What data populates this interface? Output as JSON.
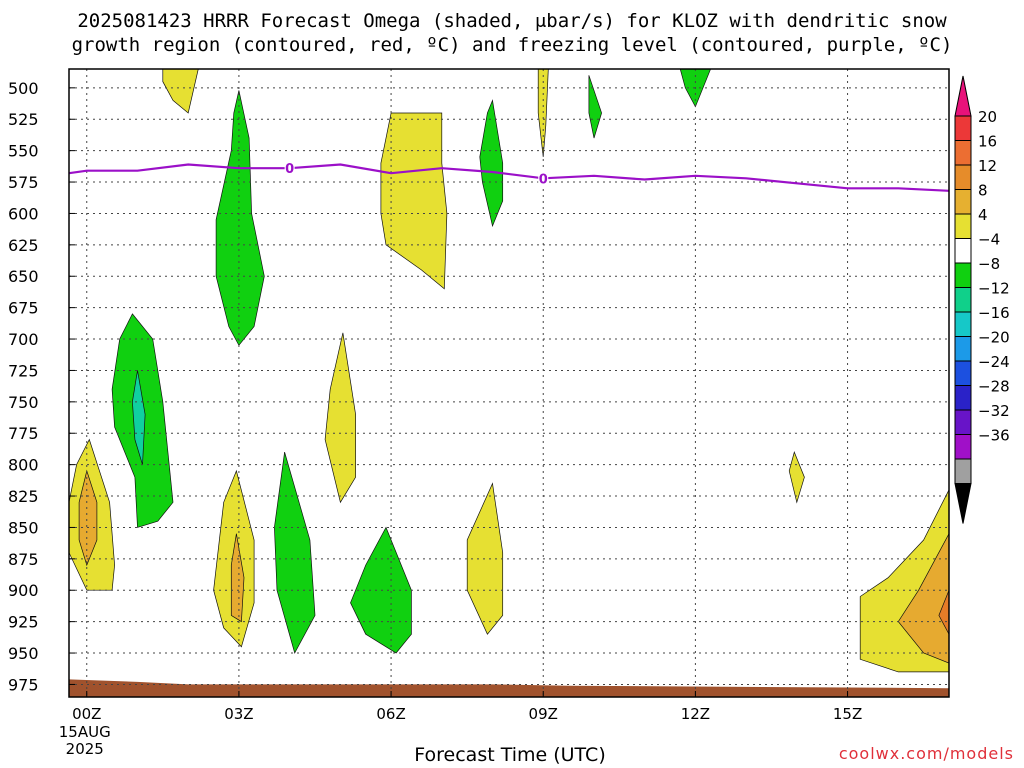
{
  "title_line1": "2025081423 HRRR Forecast Omega (shaded, μbar/s) for KLOZ with dendritic snow",
  "title_line2": "growth region (contoured, red, ºC) and freezing level (contoured, purple, ºC)",
  "xlabel": "Forecast Time (UTC)",
  "credit": "coolwx.com/models",
  "colors": {
    "freezing_level": "#9b10c8",
    "terrain": "#a0522d",
    "omega_pos_4_8": "#e6e032",
    "omega_pos_8_12": "#e6aa30",
    "omega_pos_12_16": "#e67c28",
    "omega_neg_4_8": "#10d010",
    "omega_neg_8_12": "#10d0a0",
    "credit": "#e0303a"
  },
  "chart_data": {
    "type": "time-height contour",
    "x": {
      "unit": "forecast hour (UTC)",
      "range": [
        -0.35,
        17
      ],
      "ticks": [
        {
          "hour": 0,
          "label": "00Z",
          "sub": [
            "15AUG",
            "2025"
          ]
        },
        {
          "hour": 3,
          "label": "03Z"
        },
        {
          "hour": 6,
          "label": "06Z"
        },
        {
          "hour": 9,
          "label": "09Z"
        },
        {
          "hour": 12,
          "label": "12Z"
        },
        {
          "hour": 15,
          "label": "15Z"
        }
      ]
    },
    "y": {
      "unit": "mb",
      "range": [
        485,
        985
      ],
      "ticks": [
        500,
        525,
        550,
        575,
        600,
        625,
        650,
        675,
        700,
        725,
        750,
        775,
        800,
        825,
        850,
        875,
        900,
        925,
        950,
        975
      ]
    },
    "grid": true,
    "colorbar": {
      "unit": "μbar/s",
      "levels": [
        "20",
        "16",
        "12",
        "8",
        "4",
        "−4",
        "−8",
        "−12",
        "−16",
        "−20",
        "−24",
        "−28",
        "−32",
        "−36"
      ],
      "colors": [
        "#e8127a",
        "#ec3838",
        "#ec6e32",
        "#e68c2a",
        "#e6b030",
        "#e6e032",
        "#ffffff",
        "#10d010",
        "#10d08a",
        "#16c8c8",
        "#1c9ae8",
        "#1c50e0",
        "#2a22c8",
        "#6814c8",
        "#a010c8",
        "#a0a0a0",
        "#000000"
      ]
    },
    "freezing_level": {
      "label": "0",
      "label_hours": [
        4,
        9
      ],
      "points": [
        [
          -0.35,
          568
        ],
        [
          0,
          566
        ],
        [
          1,
          566
        ],
        [
          2,
          561
        ],
        [
          3,
          564
        ],
        [
          4,
          564
        ],
        [
          5,
          561
        ],
        [
          6,
          568
        ],
        [
          7,
          564
        ],
        [
          8,
          567
        ],
        [
          9,
          572
        ],
        [
          10,
          570
        ],
        [
          11,
          573
        ],
        [
          12,
          570
        ],
        [
          13,
          572
        ],
        [
          14,
          576
        ],
        [
          15,
          580
        ],
        [
          16,
          580
        ],
        [
          17,
          582
        ]
      ]
    },
    "omega_regions": [
      {
        "sign": "+",
        "class": "4-8",
        "points": [
          [
            1.5,
            485
          ],
          [
            2.2,
            485
          ],
          [
            2.0,
            520
          ],
          [
            1.7,
            510
          ],
          [
            1.5,
            495
          ]
        ]
      },
      {
        "sign": "-",
        "class": "4-8",
        "points": [
          [
            3.0,
            502
          ],
          [
            3.2,
            540
          ],
          [
            3.25,
            600
          ],
          [
            3.5,
            650
          ],
          [
            3.3,
            690
          ],
          [
            3.0,
            705
          ],
          [
            2.8,
            690
          ],
          [
            2.55,
            650
          ],
          [
            2.55,
            605
          ],
          [
            2.85,
            550
          ],
          [
            2.9,
            520
          ]
        ]
      },
      {
        "sign": "-",
        "class": "4-8",
        "points": [
          [
            0.9,
            680
          ],
          [
            1.3,
            700
          ],
          [
            1.5,
            750
          ],
          [
            1.6,
            790
          ],
          [
            1.7,
            830
          ],
          [
            1.4,
            845
          ],
          [
            1.0,
            850
          ],
          [
            0.95,
            810
          ],
          [
            0.55,
            770
          ],
          [
            0.5,
            740
          ],
          [
            0.65,
            700
          ]
        ]
      },
      {
        "sign": "-",
        "class": "8-12",
        "points": [
          [
            1.0,
            725
          ],
          [
            1.15,
            760
          ],
          [
            1.1,
            800
          ],
          [
            0.95,
            780
          ],
          [
            0.9,
            750
          ]
        ]
      },
      {
        "sign": "+",
        "class": "4-8",
        "points": [
          [
            0.05,
            780
          ],
          [
            0.45,
            830
          ],
          [
            0.55,
            880
          ],
          [
            0.5,
            900
          ],
          [
            0.0,
            900
          ],
          [
            -0.35,
            870
          ],
          [
            -0.35,
            830
          ],
          [
            -0.2,
            800
          ]
        ]
      },
      {
        "sign": "+",
        "class": "8-12",
        "points": [
          [
            0.0,
            805
          ],
          [
            0.2,
            830
          ],
          [
            0.2,
            860
          ],
          [
            0.0,
            880
          ],
          [
            -0.15,
            860
          ],
          [
            -0.15,
            830
          ]
        ]
      },
      {
        "sign": "+",
        "class": "4-8",
        "points": [
          [
            7.0,
            520
          ],
          [
            7.0,
            560
          ],
          [
            7.1,
            600
          ],
          [
            7.05,
            660
          ],
          [
            6.6,
            645
          ],
          [
            5.9,
            625
          ],
          [
            5.8,
            600
          ],
          [
            5.8,
            560
          ],
          [
            6.0,
            520
          ]
        ]
      },
      {
        "sign": "-",
        "class": "4-8",
        "points": [
          [
            8.0,
            510
          ],
          [
            8.2,
            560
          ],
          [
            8.2,
            590
          ],
          [
            8.0,
            610
          ],
          [
            7.8,
            575
          ],
          [
            7.75,
            555
          ],
          [
            7.9,
            520
          ]
        ]
      },
      {
        "sign": "+",
        "class": "4-8",
        "points": [
          [
            8.9,
            485
          ],
          [
            9.1,
            485
          ],
          [
            9.05,
            530
          ],
          [
            9.0,
            555
          ],
          [
            8.9,
            520
          ]
        ]
      },
      {
        "sign": "-",
        "class": "4-8",
        "points": [
          [
            9.9,
            490
          ],
          [
            10.15,
            520
          ],
          [
            10.0,
            540
          ],
          [
            9.9,
            520
          ]
        ]
      },
      {
        "sign": "-",
        "class": "4-8",
        "points": [
          [
            11.7,
            485
          ],
          [
            12.3,
            485
          ],
          [
            12.0,
            515
          ],
          [
            11.8,
            500
          ]
        ]
      },
      {
        "sign": "+",
        "class": "4-8",
        "points": [
          [
            5.05,
            695
          ],
          [
            5.3,
            760
          ],
          [
            5.3,
            810
          ],
          [
            5.0,
            830
          ],
          [
            4.7,
            780
          ],
          [
            4.8,
            740
          ]
        ]
      },
      {
        "sign": "+",
        "class": "4-8",
        "points": [
          [
            2.95,
            805
          ],
          [
            3.3,
            860
          ],
          [
            3.3,
            910
          ],
          [
            3.05,
            945
          ],
          [
            2.7,
            930
          ],
          [
            2.5,
            900
          ],
          [
            2.7,
            830
          ]
        ]
      },
      {
        "sign": "+",
        "class": "8-12",
        "points": [
          [
            2.95,
            855
          ],
          [
            3.1,
            890
          ],
          [
            3.05,
            925
          ],
          [
            2.85,
            920
          ],
          [
            2.85,
            880
          ]
        ]
      },
      {
        "sign": "-",
        "class": "4-8",
        "points": [
          [
            3.9,
            790
          ],
          [
            4.4,
            860
          ],
          [
            4.5,
            920
          ],
          [
            4.1,
            950
          ],
          [
            3.75,
            900
          ],
          [
            3.7,
            850
          ]
        ]
      },
      {
        "sign": "-",
        "class": "4-8",
        "points": [
          [
            5.9,
            850
          ],
          [
            6.4,
            900
          ],
          [
            6.4,
            935
          ],
          [
            6.1,
            950
          ],
          [
            5.5,
            935
          ],
          [
            5.2,
            910
          ],
          [
            5.5,
            880
          ]
        ]
      },
      {
        "sign": "+",
        "class": "4-8",
        "points": [
          [
            8.0,
            815
          ],
          [
            8.2,
            870
          ],
          [
            8.2,
            920
          ],
          [
            7.9,
            935
          ],
          [
            7.5,
            900
          ],
          [
            7.5,
            860
          ]
        ]
      },
      {
        "sign": "+",
        "class": "4-8",
        "points": [
          [
            13.95,
            790
          ],
          [
            14.15,
            810
          ],
          [
            14.0,
            830
          ],
          [
            13.85,
            805
          ]
        ]
      },
      {
        "sign": "+",
        "class": "4-8",
        "points": [
          [
            17.0,
            820
          ],
          [
            16.5,
            860
          ],
          [
            15.8,
            890
          ],
          [
            15.25,
            905
          ],
          [
            15.25,
            955
          ],
          [
            16.0,
            965
          ],
          [
            17.0,
            965
          ]
        ]
      },
      {
        "sign": "+",
        "class": "8-12",
        "points": [
          [
            17.0,
            855
          ],
          [
            16.4,
            900
          ],
          [
            16.0,
            925
          ],
          [
            16.5,
            950
          ],
          [
            17.0,
            958
          ]
        ]
      },
      {
        "sign": "+",
        "class": "12-16",
        "points": [
          [
            17.0,
            900
          ],
          [
            16.8,
            920
          ],
          [
            17.0,
            935
          ]
        ]
      }
    ],
    "terrain": {
      "points": [
        [
          -0.35,
          971
        ],
        [
          1.0,
          973
        ],
        [
          2.0,
          975
        ],
        [
          4.0,
          975
        ],
        [
          8.0,
          975
        ],
        [
          9.5,
          976
        ],
        [
          17.0,
          978
        ]
      ]
    }
  }
}
